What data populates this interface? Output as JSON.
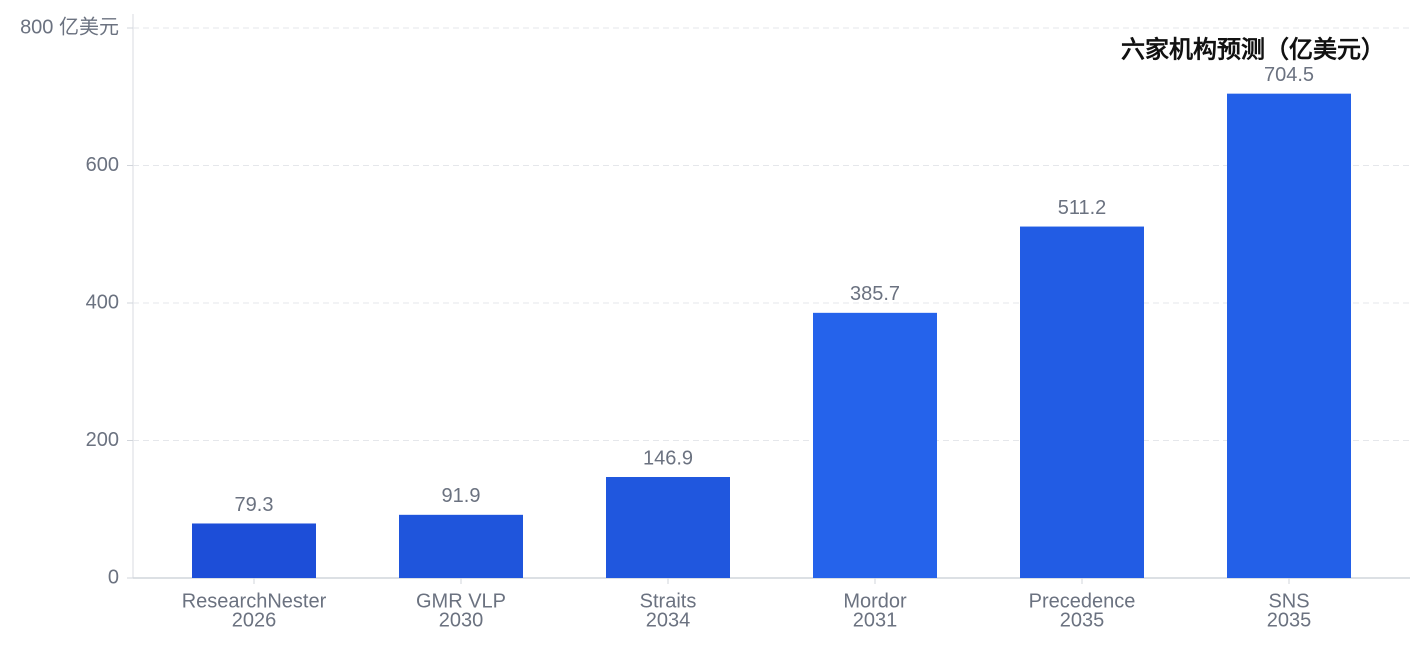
{
  "chart_data": {
    "type": "bar",
    "title": "六家机构预测（亿美元）",
    "categories": [
      [
        "ResearchNester",
        "2026"
      ],
      [
        "GMR VLP",
        "2030"
      ],
      [
        "Straits",
        "2034"
      ],
      [
        "Mordor",
        "2031"
      ],
      [
        "Precedence",
        "2035"
      ],
      [
        "SNS",
        "2035"
      ]
    ],
    "values": [
      79.3,
      91.9,
      146.9,
      385.7,
      511.2,
      704.5
    ],
    "colors": [
      "#1d4ed8",
      "#1f55dc",
      "#2057de",
      "#2563eb",
      "#225ce4",
      "#2360e8"
    ],
    "ylim": [
      0,
      800
    ],
    "yticks": [
      0,
      200,
      400,
      600,
      {
        "value": 800,
        "label": "800 亿美元"
      }
    ],
    "grid": true
  }
}
